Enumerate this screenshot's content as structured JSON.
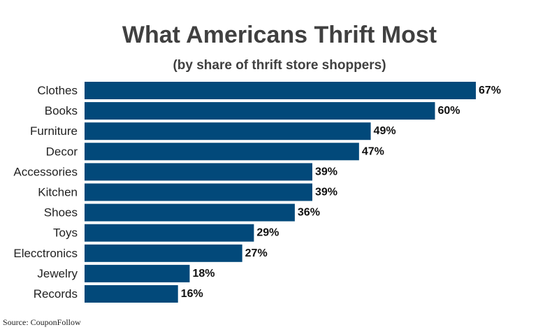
{
  "chart_data": {
    "type": "bar",
    "orientation": "horizontal",
    "title": "What Americans Thrift Most",
    "subtitle": "(by share of thrift store shoppers)",
    "categories": [
      "Clothes",
      "Books",
      "Furniture",
      "Decor",
      "Accessories",
      "Kitchen",
      "Shoes",
      "Toys",
      "Elecctronics",
      "Jewelry",
      "Records"
    ],
    "values": [
      67,
      60,
      49,
      47,
      39,
      39,
      36,
      29,
      27,
      18,
      16
    ],
    "value_labels": [
      "67%",
      "60%",
      "49%",
      "47%",
      "39%",
      "39%",
      "36%",
      "29%",
      "27%",
      "18%",
      "16%"
    ],
    "unit": "%",
    "xlim": [
      0,
      67
    ],
    "bar_color": "#02497a",
    "grid": false,
    "legend": "none"
  },
  "source": "Source: CouponFollow"
}
